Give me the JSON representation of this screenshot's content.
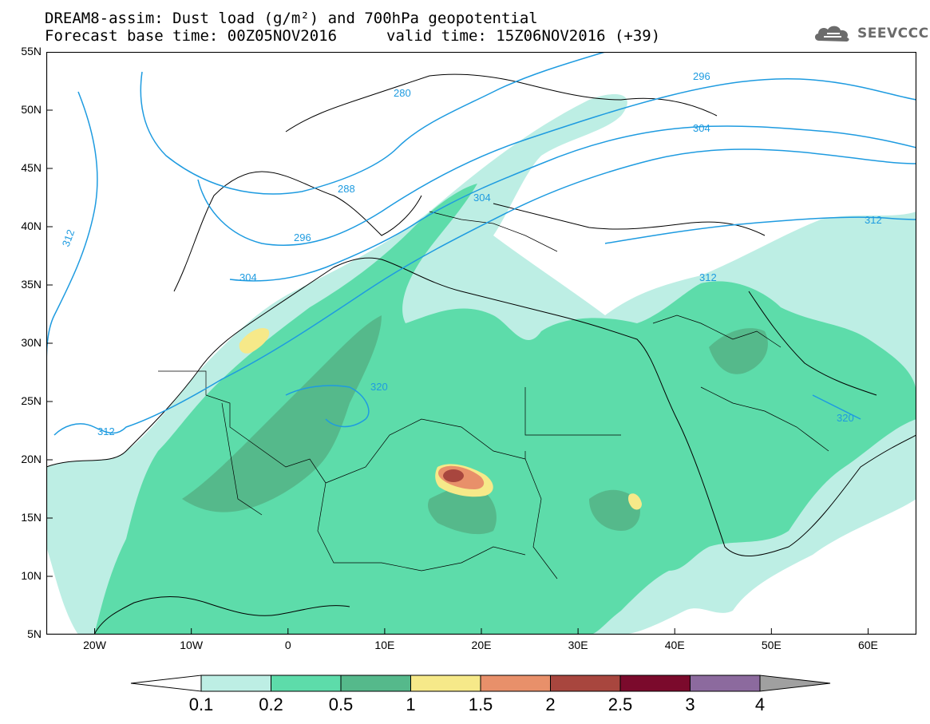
{
  "title": {
    "line1": "DREAM8-assim: Dust load (g/m²) and 700hPa geopotential",
    "line2_base": "Forecast base time: 00Z05NOV2016",
    "line2_valid": "valid time: 15Z06NOV2016 (+39)"
  },
  "logo": {
    "text": "SEEVCCC",
    "icon": "cloud-icon"
  },
  "map": {
    "lon_range": [
      -25,
      65
    ],
    "lat_range": [
      5,
      55
    ],
    "lat_ticks": [
      "55N",
      "50N",
      "45N",
      "40N",
      "35N",
      "30N",
      "25N",
      "20N",
      "15N",
      "10N",
      "5N"
    ],
    "lon_ticks": [
      "20W",
      "10W",
      "0",
      "10E",
      "20E",
      "30E",
      "40E",
      "50E",
      "60E"
    ],
    "contour_color": "#1e9be0",
    "contour_labels": [
      "280",
      "288",
      "296",
      "304",
      "304",
      "296",
      "304",
      "312",
      "312",
      "312",
      "320",
      "320",
      "312"
    ]
  },
  "colorbar": {
    "labels": [
      "0.1",
      "0.2",
      "0.5",
      "1",
      "1.5",
      "2",
      "2.5",
      "3",
      "4"
    ],
    "colors": [
      "#bdeee4",
      "#5ddcaa",
      "#55b98b",
      "#f6e989",
      "#e8906a",
      "#a8463e",
      "#7b0a2c",
      "#8c6a9e"
    ],
    "below_color": "#ffffff",
    "above_color": "#a0a0a0"
  }
}
